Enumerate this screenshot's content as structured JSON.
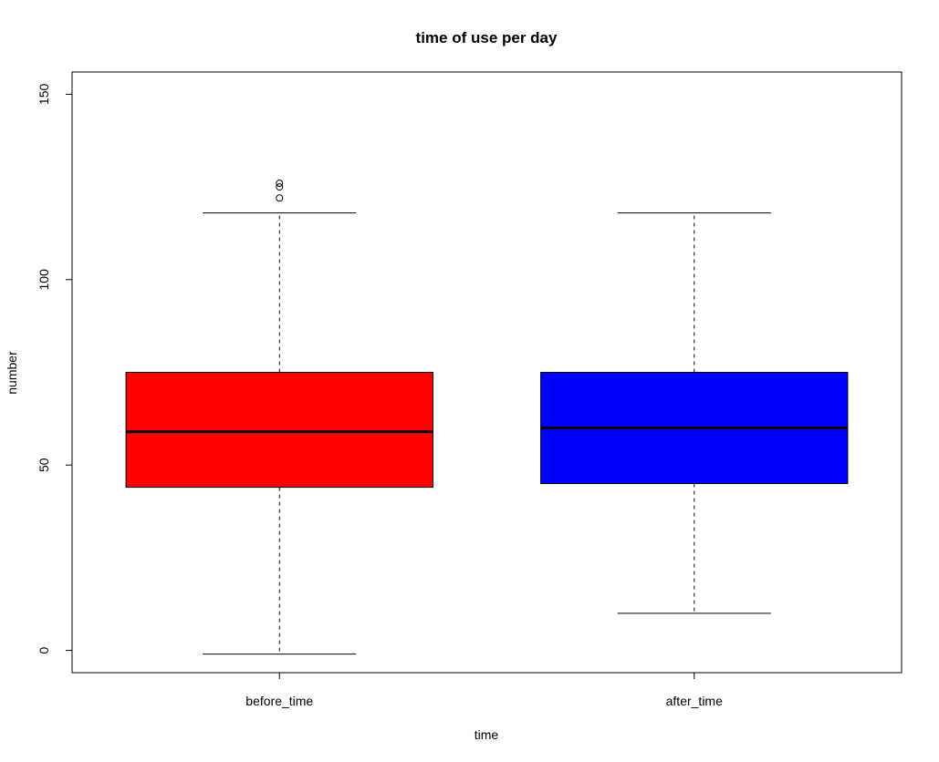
{
  "chart_data": {
    "type": "box",
    "title": "time of use per day",
    "xlabel": "time",
    "ylabel": "number",
    "ylim": [
      -6,
      156
    ],
    "yticks": [
      0,
      50,
      100,
      150
    ],
    "grid": false,
    "legend": "none",
    "categories": [
      "before_time",
      "after_time"
    ],
    "boxes": [
      {
        "category": "before_time",
        "color": "#ff0000",
        "whisker_low": -1,
        "q1": 44,
        "median": 59,
        "q3": 75,
        "whisker_high": 118,
        "outliers": [
          122,
          125,
          126
        ]
      },
      {
        "category": "after_time",
        "color": "#0000ff",
        "whisker_low": 10,
        "q1": 45,
        "median": 60,
        "q3": 75,
        "whisker_high": 118,
        "outliers": []
      }
    ]
  }
}
